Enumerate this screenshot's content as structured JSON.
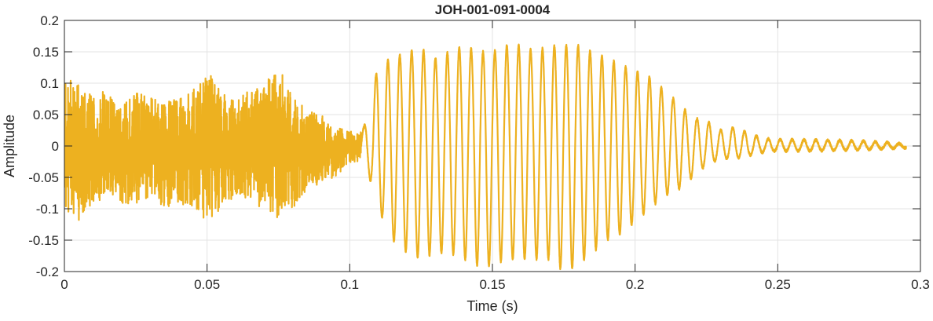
{
  "chart_data": {
    "type": "line",
    "title": "JOH-001-091-0004",
    "xlabel": "Time (s)",
    "ylabel": "Amplitude",
    "xlim": [
      0,
      0.3
    ],
    "ylim": [
      -0.2,
      0.2
    ],
    "xticks": [
      0,
      0.05,
      0.1,
      0.15,
      0.2,
      0.25,
      0.3
    ],
    "xtick_labels": [
      "0",
      "0.05",
      "0.1",
      "0.15",
      "0.2",
      "0.25",
      "0.3"
    ],
    "yticks": [
      -0.2,
      -0.15,
      -0.1,
      -0.05,
      0,
      0.05,
      0.1,
      0.15,
      0.2
    ],
    "ytick_labels": [
      "-0.2",
      "-0.15",
      "-0.1",
      "-0.05",
      "0",
      "0.05",
      "0.1",
      "0.15",
      "0.2"
    ],
    "grid": true,
    "line_color": "#EDB120",
    "signal_end": 0.295,
    "tonal_onset": 0.104,
    "tonal_frequency_hz": 240,
    "envelope": {
      "t": [
        0,
        0.005,
        0.01,
        0.015,
        0.02,
        0.025,
        0.03,
        0.035,
        0.04,
        0.045,
        0.05,
        0.055,
        0.06,
        0.065,
        0.07,
        0.075,
        0.08,
        0.085,
        0.09,
        0.095,
        0.1,
        0.105,
        0.11,
        0.115,
        0.12,
        0.125,
        0.13,
        0.135,
        0.14,
        0.145,
        0.15,
        0.155,
        0.16,
        0.165,
        0.17,
        0.175,
        0.18,
        0.185,
        0.19,
        0.195,
        0.2,
        0.205,
        0.21,
        0.215,
        0.22,
        0.225,
        0.23,
        0.235,
        0.24,
        0.245,
        0.25,
        0.26,
        0.27,
        0.28,
        0.29,
        0.295
      ],
      "upper": [
        0.12,
        0.1,
        0.08,
        0.09,
        0.06,
        0.09,
        0.08,
        0.07,
        0.08,
        0.1,
        0.12,
        0.09,
        0.07,
        0.09,
        0.1,
        0.13,
        0.08,
        0.06,
        0.05,
        0.03,
        0.025,
        0.03,
        0.13,
        0.14,
        0.15,
        0.155,
        0.14,
        0.15,
        0.16,
        0.15,
        0.15,
        0.16,
        0.16,
        0.15,
        0.16,
        0.16,
        0.16,
        0.15,
        0.14,
        0.13,
        0.12,
        0.11,
        0.09,
        0.07,
        0.045,
        0.04,
        0.025,
        0.03,
        0.02,
        0.012,
        0.01,
        0.01,
        0.009,
        0.008,
        0.005,
        0.003
      ],
      "lower": [
        -0.1,
        -0.12,
        -0.1,
        -0.08,
        -0.09,
        -0.1,
        -0.08,
        -0.1,
        -0.09,
        -0.1,
        -0.12,
        -0.1,
        -0.08,
        -0.09,
        -0.1,
        -0.12,
        -0.1,
        -0.07,
        -0.06,
        -0.05,
        -0.03,
        -0.02,
        -0.1,
        -0.15,
        -0.17,
        -0.18,
        -0.17,
        -0.17,
        -0.18,
        -0.19,
        -0.19,
        -0.18,
        -0.18,
        -0.18,
        -0.18,
        -0.2,
        -0.19,
        -0.17,
        -0.15,
        -0.14,
        -0.12,
        -0.1,
        -0.08,
        -0.07,
        -0.05,
        -0.03,
        -0.02,
        -0.02,
        -0.015,
        -0.01,
        -0.008,
        -0.008,
        -0.007,
        -0.006,
        -0.004,
        -0.003
      ]
    }
  }
}
